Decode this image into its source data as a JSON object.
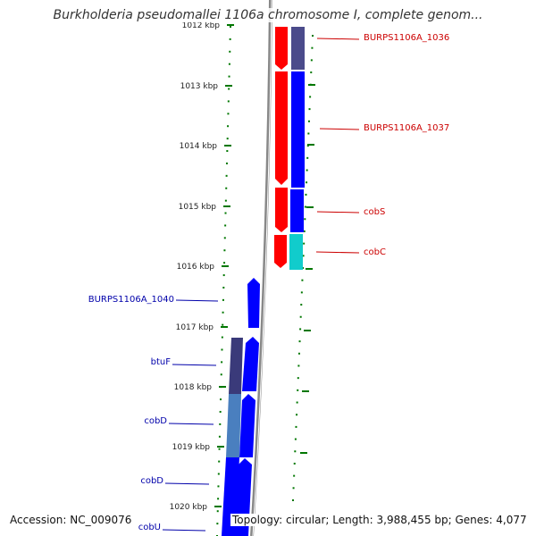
{
  "title": "Burkholderia pseudomallei 1106a chromosome I, complete genom...",
  "footer": {
    "accession": "Accession: NC_009076",
    "summary": "Topology: circular; Length: 3,988,455 bp; Genes: 4,077"
  },
  "ruler": {
    "ticks": [
      "1012 kbp",
      "1013 kbp",
      "1014 kbp",
      "1015 kbp",
      "1016 kbp",
      "1017 kbp",
      "1018 kbp",
      "1019 kbp",
      "1020 kbp"
    ]
  },
  "colors": {
    "forward_cds": "#ff0000",
    "reverse_cds": "#0000ff",
    "dark_purple": "#4b4b8b",
    "cyan": "#11cccc",
    "steel_blue": "#4a7fbf",
    "dark_slate": "#3a3a7a",
    "backbone": "#888888",
    "tick_green": "#007700",
    "forward_label": "#cc0000",
    "reverse_label": "#0000aa"
  },
  "forward_labels": [
    "BURPS1106A_1036",
    "BURPS1106A_1037",
    "cobS",
    "cobC"
  ],
  "reverse_labels": [
    "BURPS1106A_1040",
    "btuF",
    "cobD",
    "cobD",
    "cobU"
  ]
}
